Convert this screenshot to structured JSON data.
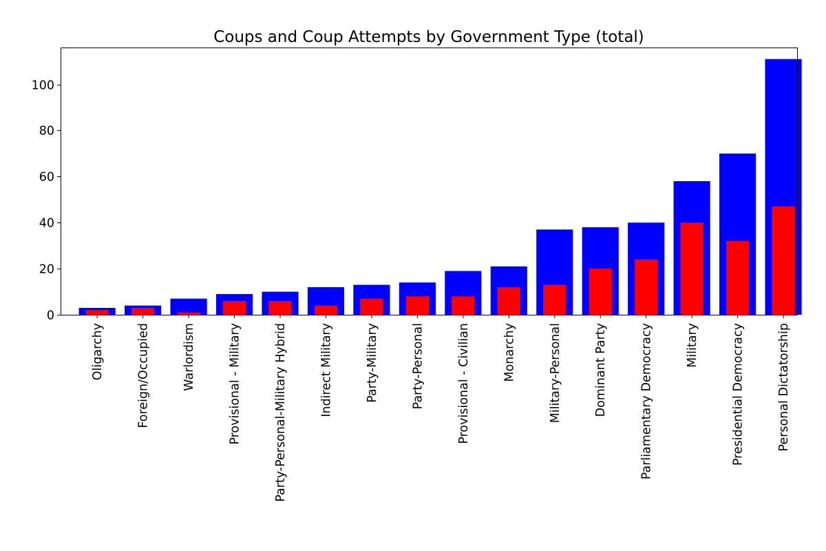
{
  "chart_data": {
    "type": "bar",
    "title": "Coups and Coup Attempts by Government Type (total)",
    "xlabel": "",
    "ylabel": "",
    "ylim": [
      0,
      116
    ],
    "yticks": [
      0,
      20,
      40,
      60,
      80,
      100
    ],
    "grid": false,
    "categories": [
      "Oligarchy",
      "Foreign/Occupied",
      "Warlordism",
      "Provisional - Military",
      "Party-Personal-Military Hybrid",
      "Indirect Military",
      "Party-Military",
      "Party-Personal",
      "Provisional - Civilian",
      "Monarchy",
      "Military-Personal",
      "Dominant Party",
      "Parliamentary Democracy",
      "Military",
      "Presidential Democracy",
      "Personal Dictatorship"
    ],
    "series": [
      {
        "color": "#0000ff",
        "values": [
          3,
          4,
          7,
          9,
          10,
          12,
          13,
          14,
          19,
          21,
          37,
          38,
          40,
          58,
          70,
          111
        ]
      },
      {
        "color": "#ff0000",
        "values": [
          2,
          3,
          1,
          6,
          6,
          4,
          7,
          8,
          8,
          12,
          13,
          20,
          24,
          40,
          32,
          47
        ]
      }
    ]
  }
}
